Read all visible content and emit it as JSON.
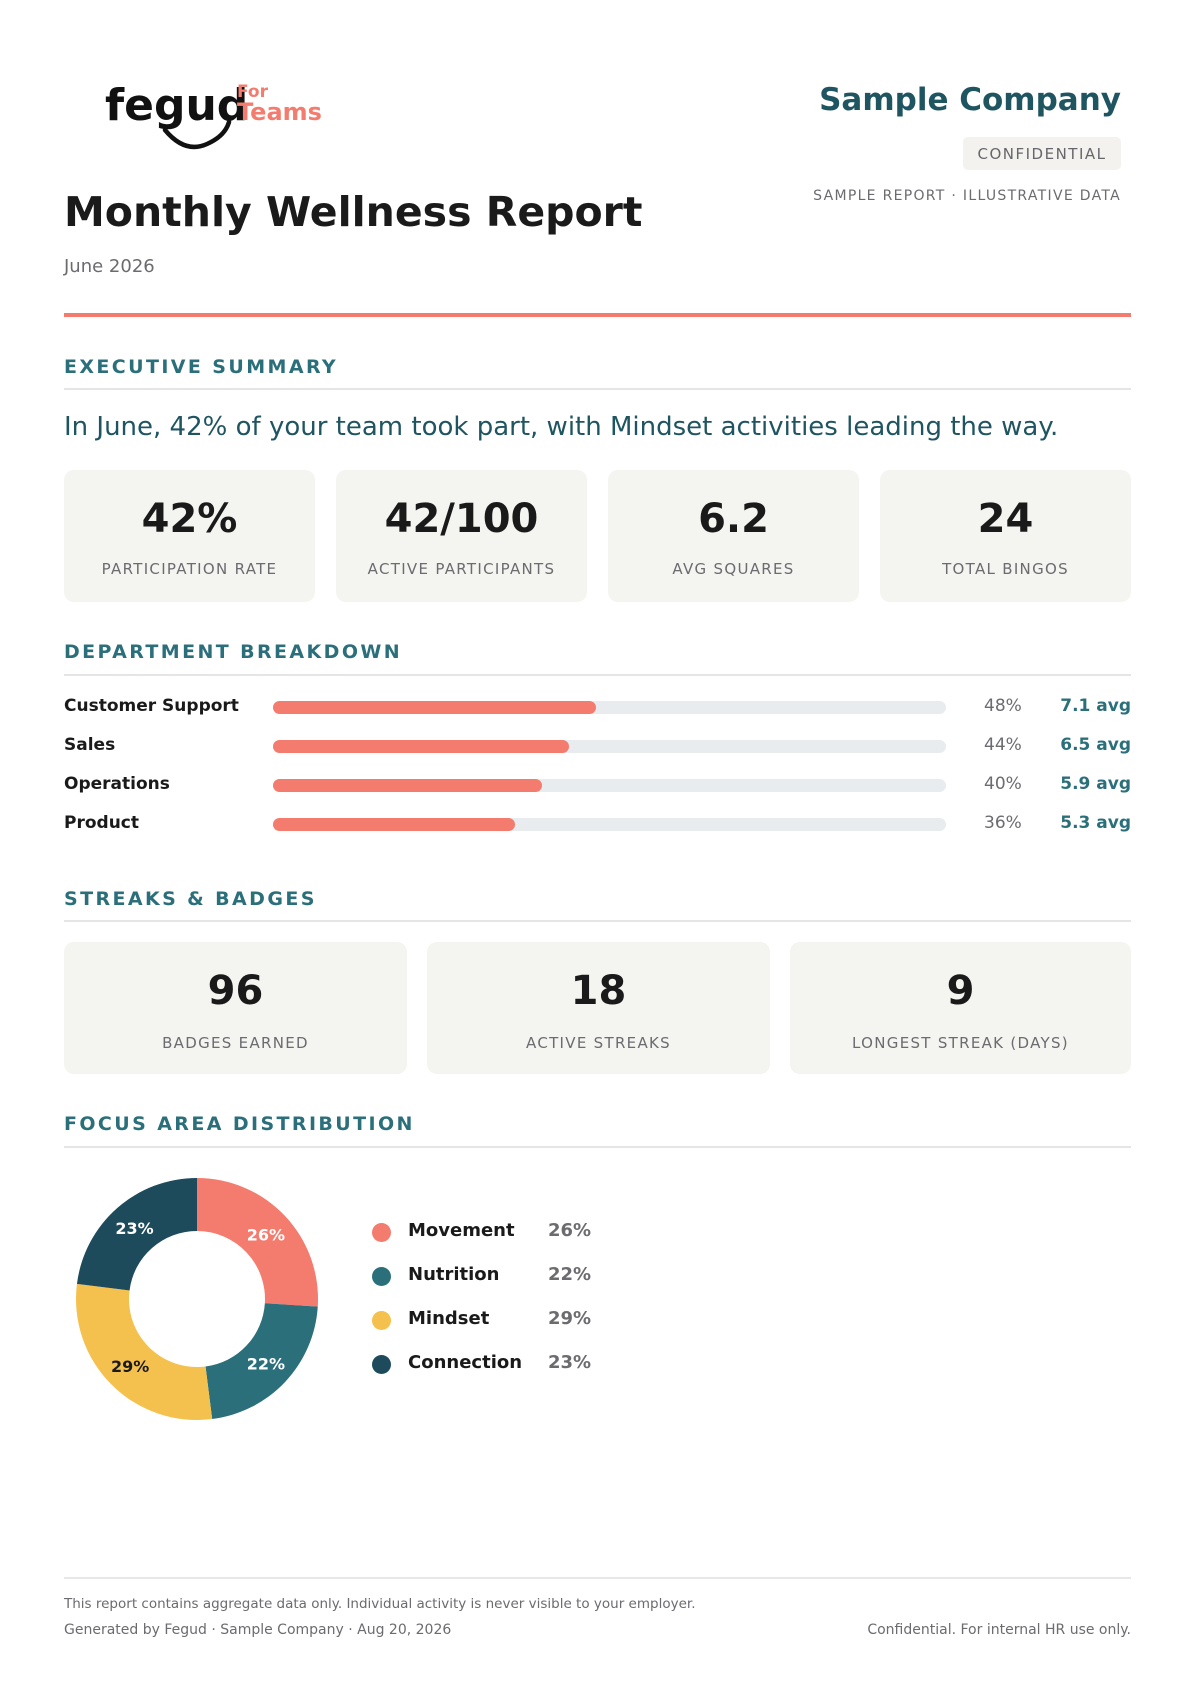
{
  "header": {
    "logo_word": "fegud",
    "logo_for": "For",
    "logo_teams": "Teams",
    "company": "Sample Company",
    "confidential_badge": "CONFIDENTIAL",
    "sample_note": "SAMPLE REPORT · ILLUSTRATIVE DATA",
    "title": "Monthly Wellness Report",
    "period": "June 2026"
  },
  "colors": {
    "accent": "#f47c6e",
    "teal": "#2b6f7b",
    "dark_teal": "#1f5561",
    "movement": "#f47c6e",
    "nutrition": "#2b6f7b",
    "mindset": "#f5c14e",
    "connection": "#1e4b5c"
  },
  "executive_summary": {
    "heading": "EXECUTIVE SUMMARY",
    "headline": "In June, 42% of your team took part, with Mindset activities leading the way.",
    "kpis": [
      {
        "value": "42%",
        "label": "PARTICIPATION RATE"
      },
      {
        "value": "42/100",
        "label": "ACTIVE PARTICIPANTS"
      },
      {
        "value": "6.2",
        "label": "AVG SQUARES"
      },
      {
        "value": "24",
        "label": "TOTAL BINGOS"
      }
    ]
  },
  "department_breakdown": {
    "heading": "DEPARTMENT BREAKDOWN",
    "rows": [
      {
        "name": "Customer Support",
        "percent": 48,
        "percent_label": "48%",
        "avg": "7.1 avg"
      },
      {
        "name": "Sales",
        "percent": 44,
        "percent_label": "44%",
        "avg": "6.5 avg"
      },
      {
        "name": "Operations",
        "percent": 40,
        "percent_label": "40%",
        "avg": "5.9 avg"
      },
      {
        "name": "Product",
        "percent": 36,
        "percent_label": "36%",
        "avg": "5.3 avg"
      }
    ]
  },
  "streaks": {
    "heading": "STREAKS & BADGES",
    "cards": [
      {
        "value": "96",
        "label": "BADGES EARNED"
      },
      {
        "value": "18",
        "label": "ACTIVE STREAKS"
      },
      {
        "value": "9",
        "label": "LONGEST STREAK (DAYS)"
      }
    ]
  },
  "focus_area": {
    "heading": "FOCUS AREA DISTRIBUTION"
  },
  "chart_data": {
    "type": "pie",
    "title": "",
    "categories": [
      "Movement",
      "Nutrition",
      "Mindset",
      "Connection"
    ],
    "values": [
      26,
      22,
      29,
      23
    ],
    "labels": [
      "26%",
      "22%",
      "29%",
      "23%"
    ],
    "colors": [
      "#f47c6e",
      "#2b6f7b",
      "#f5c14e",
      "#1e4b5c"
    ],
    "legend_placement": "right"
  },
  "footer": {
    "privacy": "This report contains aggregate data only. Individual activity is never visible to your employer.",
    "generated": "Generated by Fegud · Sample Company · Aug 20, 2026",
    "confidential": "Confidential. For internal HR use only."
  }
}
